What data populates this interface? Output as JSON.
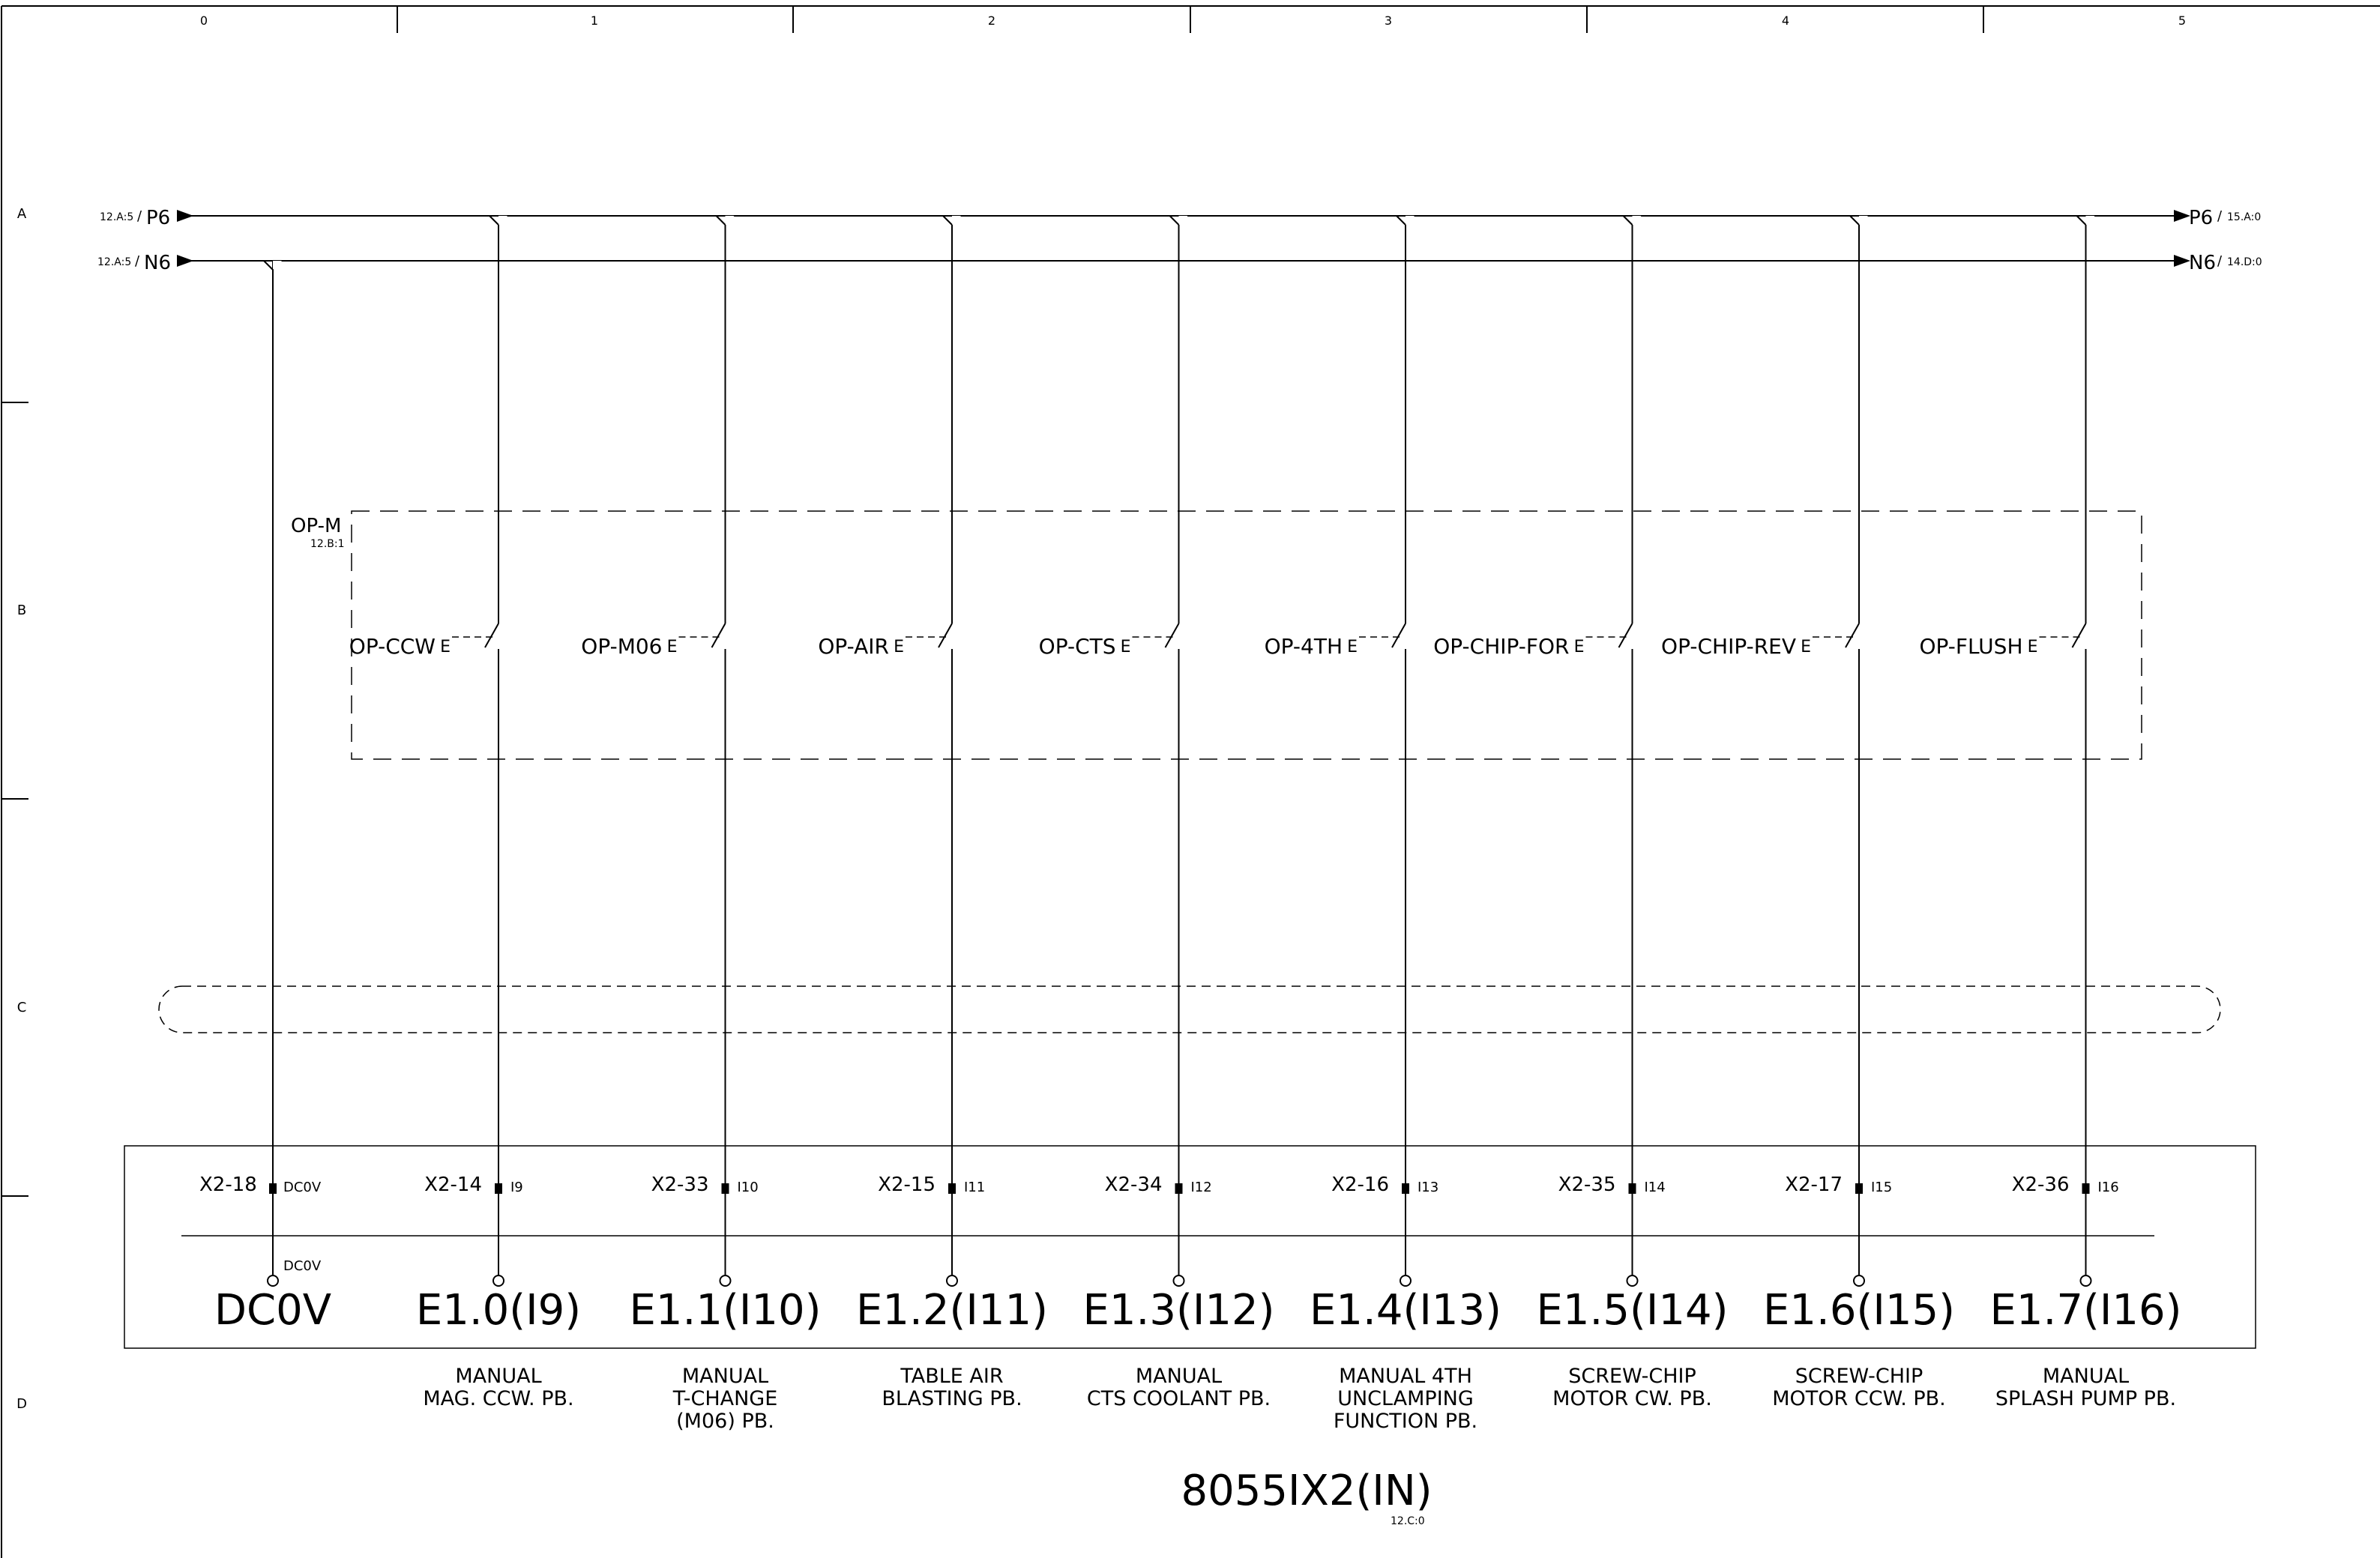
{
  "columns": [
    "0",
    "1",
    "2",
    "3",
    "4",
    "5"
  ],
  "rows": [
    "A",
    "B",
    "C",
    "D"
  ],
  "bus": {
    "p6": {
      "name": "P6",
      "in_ref": "12.A:5",
      "out_ref": "15.A:0"
    },
    "n6": {
      "name": "N6",
      "in_ref": "12.A:5",
      "out_ref": "14.D:0"
    },
    "ref_slash": "/"
  },
  "operator_panel": {
    "name": "OP-M",
    "ref": "12.B:1"
  },
  "common": {
    "terminal": "X2-18",
    "pin": "DC0V",
    "node": "DC0V",
    "label": "DC0V"
  },
  "switch_prefix": "E",
  "channels": [
    {
      "switch": "OP-CCW",
      "terminal": "X2-14",
      "pin": "I9",
      "label": "E1.0(I9)",
      "desc": [
        "MANUAL",
        "MAG. CCW. PB."
      ]
    },
    {
      "switch": "OP-M06",
      "terminal": "X2-33",
      "pin": "I10",
      "label": "E1.1(I10)",
      "desc": [
        "MANUAL",
        "T-CHANGE",
        "(M06) PB."
      ]
    },
    {
      "switch": "OP-AIR",
      "terminal": "X2-15",
      "pin": "I11",
      "label": "E1.2(I11)",
      "desc": [
        "TABLE AIR",
        "BLASTING PB."
      ]
    },
    {
      "switch": "OP-CTS",
      "terminal": "X2-34",
      "pin": "I12",
      "label": "E1.3(I12)",
      "desc": [
        "MANUAL",
        "CTS COOLANT PB."
      ]
    },
    {
      "switch": "OP-4TH",
      "terminal": "X2-16",
      "pin": "I13",
      "label": "E1.4(I13)",
      "desc": [
        "MANUAL 4TH",
        "UNCLAMPING",
        "FUNCTION PB."
      ]
    },
    {
      "switch": "OP-CHIP-FOR",
      "terminal": "X2-35",
      "pin": "I14",
      "label": "E1.5(I14)",
      "desc": [
        "SCREW-CHIP",
        "MOTOR CW. PB."
      ]
    },
    {
      "switch": "OP-CHIP-REV",
      "terminal": "X2-17",
      "pin": "I15",
      "label": "E1.6(I15)",
      "desc": [
        "SCREW-CHIP",
        "MOTOR CCW. PB."
      ]
    },
    {
      "switch": "OP-FLUSH",
      "terminal": "X2-36",
      "pin": "I16",
      "label": "E1.7(I16)",
      "desc": [
        "MANUAL",
        "SPLASH PUMP PB."
      ]
    }
  ],
  "module": {
    "name": "8055IX2(IN)",
    "ref": "12.C:0"
  }
}
